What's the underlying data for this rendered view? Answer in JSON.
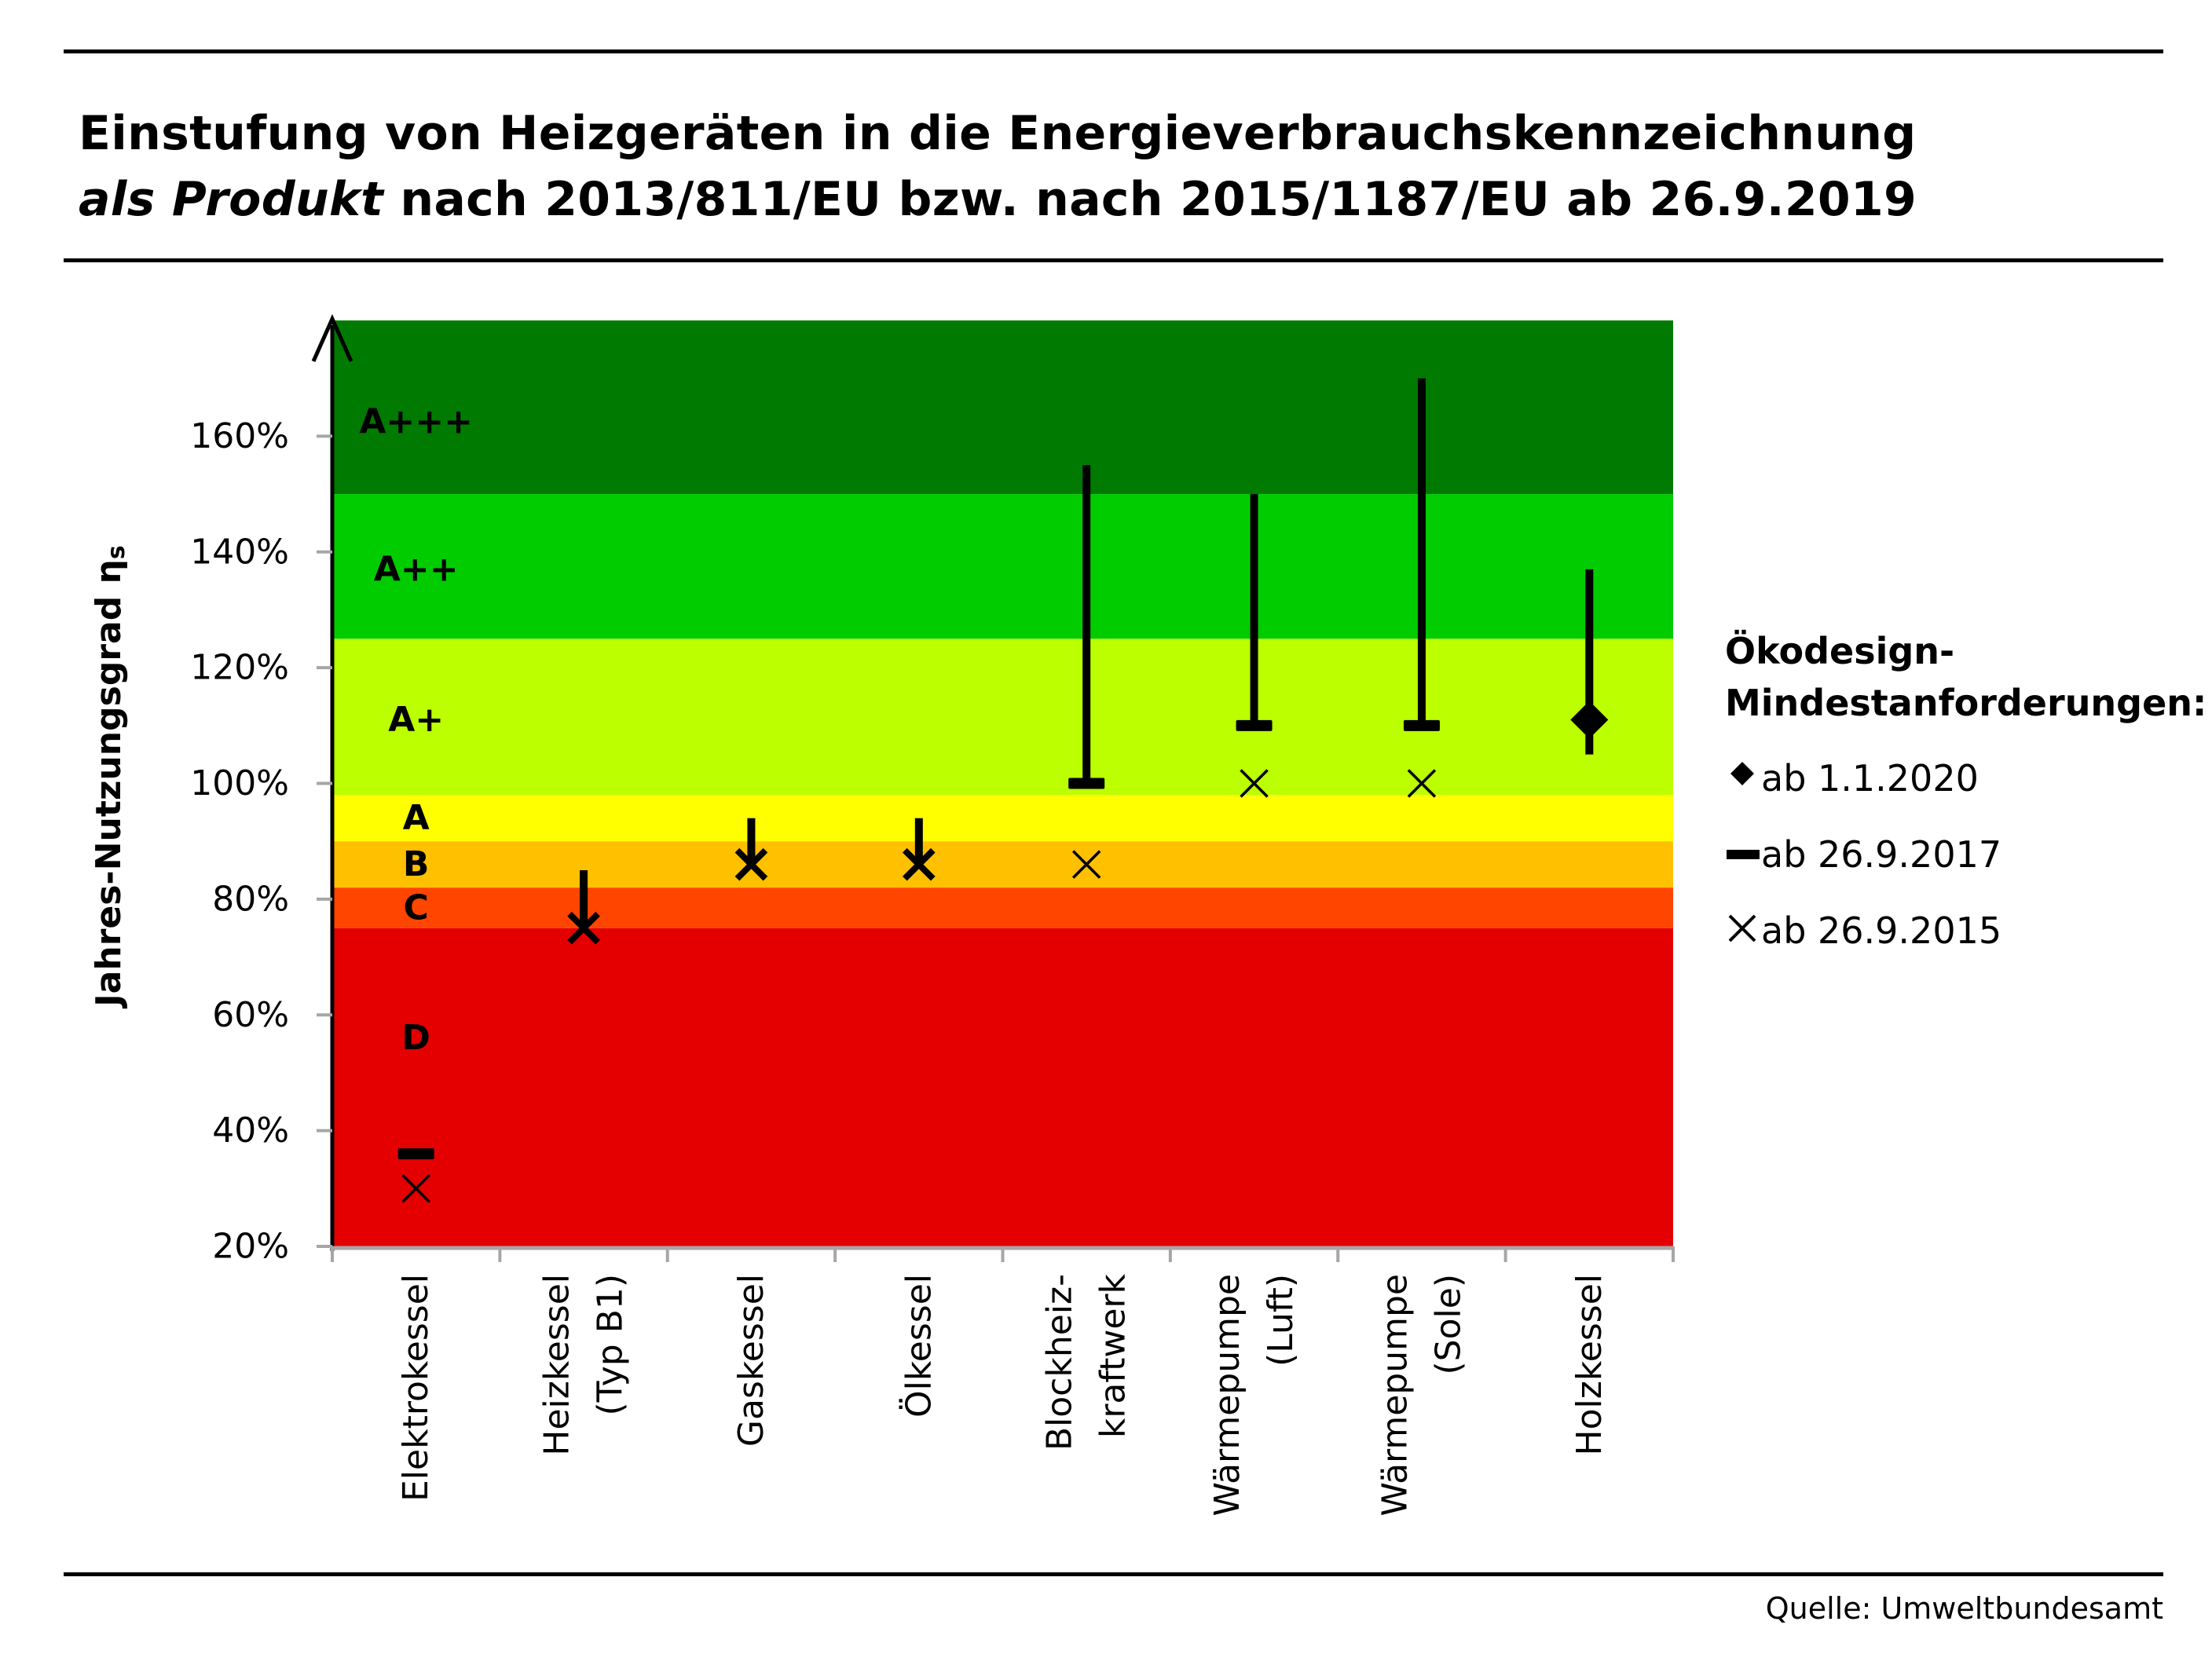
{
  "title_line1": "Einstufung von Heizgeräten in die Energieverbrauchskennzeichnung",
  "title_line2_italic": "als Produkt",
  "title_line2_rest": " nach 2013/811/EU bzw. nach 2015/1187/EU ab 26.9.2019",
  "source": "Quelle: Umweltbundesamt",
  "legend": {
    "heading_line1": "Ökodesign-",
    "heading_line2": "Mindestanforderungen:",
    "items": [
      {
        "symbol": "diamond",
        "label": "ab 1.1.2020"
      },
      {
        "symbol": "bar",
        "label": "ab 26.9.2017"
      },
      {
        "symbol": "cross",
        "label": "ab 26.9.2015"
      }
    ]
  },
  "chart_data": {
    "type": "scatter",
    "ylabel": "Jahres-Nutzungsgrad η",
    "ylabel_subscript": "s",
    "ylim": [
      20,
      180
    ],
    "yticks": [
      20,
      40,
      60,
      80,
      100,
      120,
      140,
      160
    ],
    "ytick_labels": [
      "20%",
      "40%",
      "60%",
      "80%",
      "100%",
      "120%",
      "140%",
      "160%"
    ],
    "categories": [
      [
        "Elektrokessel"
      ],
      [
        "Heizkessel",
        "(Typ B1)"
      ],
      [
        "Gaskessel"
      ],
      [
        "Ölkessel"
      ],
      [
        "Blockheiz-",
        "kraftwerk"
      ],
      [
        "Wärmepumpe",
        "(Luft)"
      ],
      [
        "Wärmepumpe",
        "(Sole)"
      ],
      [
        "Holzkessel"
      ]
    ],
    "bands": [
      {
        "label": "D",
        "from": 20,
        "to": 75,
        "color": "#e40000"
      },
      {
        "label": "C",
        "from": 75,
        "to": 82,
        "color": "#ff4500"
      },
      {
        "label": "B",
        "from": 82,
        "to": 90,
        "color": "#ffc000"
      },
      {
        "label": "A",
        "from": 90,
        "to": 98,
        "color": "#ffff00"
      },
      {
        "label": "A+",
        "from": 98,
        "to": 125,
        "color": "#bbff00"
      },
      {
        "label": "A++",
        "from": 125,
        "to": 150,
        "color": "#00cc00"
      },
      {
        "label": "A+++",
        "from": 150,
        "to": 180,
        "color": "#007a00"
      }
    ],
    "band_label_values": [
      56,
      78.5,
      86,
      94,
      111,
      137,
      162.5
    ],
    "band_label_x_index": 0,
    "range_lines": [
      {
        "category": 1,
        "from": 75,
        "to": 85
      },
      {
        "category": 2,
        "from": 86,
        "to": 94
      },
      {
        "category": 3,
        "from": 86,
        "to": 94
      },
      {
        "category": 4,
        "from": 100,
        "to": 155
      },
      {
        "category": 5,
        "from": 110,
        "to": 150
      },
      {
        "category": 6,
        "from": 110,
        "to": 170
      },
      {
        "category": 7,
        "from": 105,
        "to": 137
      }
    ],
    "series": [
      {
        "name": "ab 1.1.2020",
        "marker": "diamond",
        "points": [
          {
            "category": 7,
            "value": 111
          }
        ]
      },
      {
        "name": "ab 26.9.2017",
        "marker": "bar",
        "points": [
          {
            "category": 0,
            "value": 36
          },
          {
            "category": 4,
            "value": 100
          },
          {
            "category": 5,
            "value": 110
          },
          {
            "category": 6,
            "value": 110
          }
        ]
      },
      {
        "name": "ab 26.9.2015",
        "marker": "cross",
        "points": [
          {
            "category": 0,
            "value": 30
          },
          {
            "category": 1,
            "value": 75
          },
          {
            "category": 2,
            "value": 86
          },
          {
            "category": 3,
            "value": 86
          },
          {
            "category": 4,
            "value": 86
          },
          {
            "category": 5,
            "value": 100
          },
          {
            "category": 6,
            "value": 100
          }
        ]
      }
    ],
    "grid": false,
    "legend_position": "right"
  }
}
